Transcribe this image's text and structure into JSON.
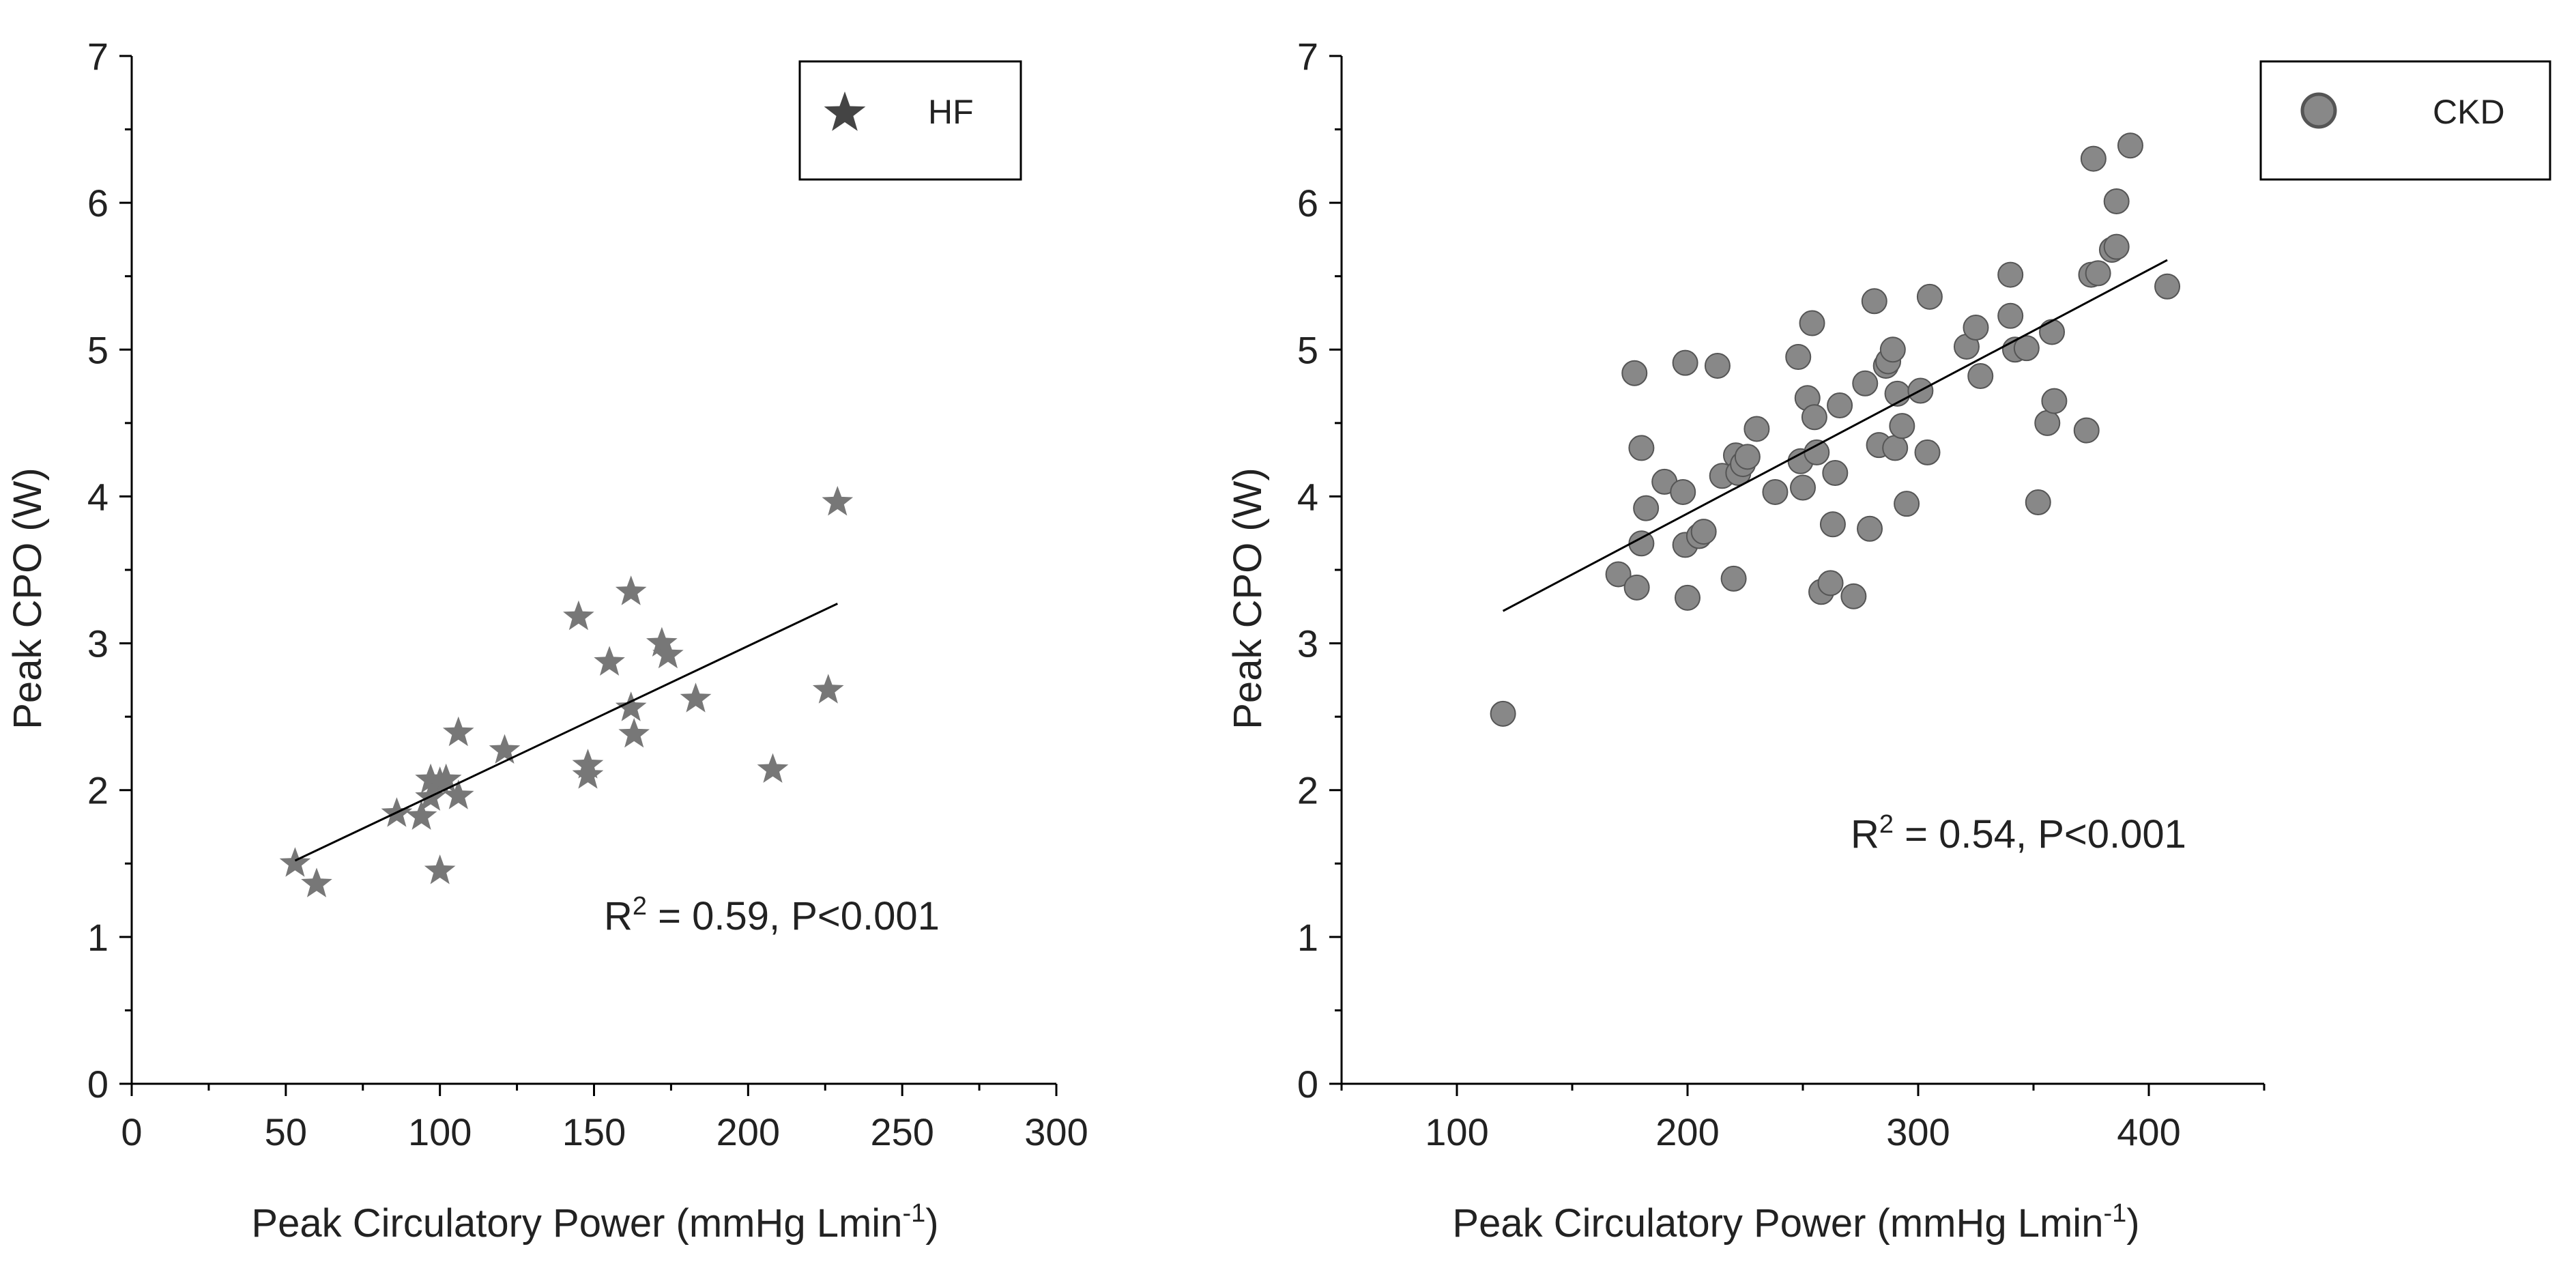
{
  "chart_data": [
    {
      "type": "scatter",
      "marker": "star",
      "legend": "HF",
      "legend_position": "top-right",
      "xlabel": "Peak Circulatory Power (mmHg Lmin",
      "xlabel_sup": "-1",
      "xlabel_end": ")",
      "ylabel": "Peak CPO (W)",
      "xlim": [
        0,
        300
      ],
      "ylim": [
        0,
        7
      ],
      "xticks": [
        "0",
        "50",
        "100",
        "150",
        "200",
        "250",
        "300"
      ],
      "yticks": [
        "0",
        "1",
        "2",
        "3",
        "4",
        "5",
        "6",
        "7"
      ],
      "stat_prefix": "R",
      "stat_sup": "2",
      "stat_suffix": " = 0.59, P<0.001",
      "colors": {
        "marker": "#777777",
        "legend_marker": "#444444",
        "line": "#000000"
      },
      "fit": {
        "x1": 53,
        "y1": 1.52,
        "x2": 229,
        "y2": 3.27
      },
      "points": [
        [
          53,
          1.5
        ],
        [
          60,
          1.36
        ],
        [
          86,
          1.84
        ],
        [
          94,
          1.82
        ],
        [
          97,
          1.95
        ],
        [
          97,
          2.07
        ],
        [
          100,
          2.05
        ],
        [
          102,
          2.07
        ],
        [
          100,
          1.45
        ],
        [
          106,
          1.96
        ],
        [
          106,
          2.39
        ],
        [
          121,
          2.27
        ],
        [
          145,
          3.18
        ],
        [
          148,
          2.17
        ],
        [
          148,
          2.1
        ],
        [
          155,
          2.87
        ],
        [
          162,
          3.35
        ],
        [
          162,
          2.56
        ],
        [
          163,
          2.38
        ],
        [
          172,
          3.0
        ],
        [
          174,
          2.92
        ],
        [
          183,
          2.62
        ],
        [
          208,
          2.14
        ],
        [
          226,
          2.68
        ],
        [
          229,
          3.96
        ]
      ]
    },
    {
      "type": "scatter",
      "marker": "circle",
      "legend": "CKD",
      "legend_position": "top-right",
      "xlabel": "Peak Circulatory Power (mmHg Lmin",
      "xlabel_sup": "-1",
      "xlabel_end": ")",
      "ylabel": "Peak CPO (W)",
      "xlim": [
        50,
        450
      ],
      "ylim": [
        0,
        7
      ],
      "xticks": [
        "100",
        "200",
        "300",
        "400"
      ],
      "xtick_values": [
        100,
        200,
        300,
        400
      ],
      "yticks": [
        "0",
        "1",
        "2",
        "3",
        "4",
        "5",
        "6",
        "7"
      ],
      "stat_prefix": "R",
      "stat_sup": "2",
      "stat_suffix": " = 0.54, P<0.001",
      "colors": {
        "marker": "#888888",
        "marker_edge": "#555555",
        "line": "#000000"
      },
      "fit": {
        "x1": 120,
        "y1": 3.22,
        "x2": 408,
        "y2": 5.61
      },
      "points": [
        [
          120,
          2.52
        ],
        [
          170,
          3.47
        ],
        [
          177,
          4.84
        ],
        [
          178,
          3.38
        ],
        [
          180,
          4.33
        ],
        [
          180,
          3.68
        ],
        [
          182,
          3.92
        ],
        [
          190,
          4.1
        ],
        [
          198,
          4.03
        ],
        [
          199,
          4.91
        ],
        [
          199,
          3.67
        ],
        [
          200,
          3.31
        ],
        [
          205,
          3.73
        ],
        [
          207,
          3.76
        ],
        [
          213,
          4.89
        ],
        [
          215,
          4.14
        ],
        [
          220,
          3.44
        ],
        [
          221,
          4.28
        ],
        [
          222,
          4.16
        ],
        [
          224,
          4.22
        ],
        [
          226,
          4.27
        ],
        [
          230,
          4.46
        ],
        [
          238,
          4.03
        ],
        [
          248,
          4.95
        ],
        [
          249,
          4.24
        ],
        [
          250,
          4.06
        ],
        [
          252,
          4.67
        ],
        [
          254,
          5.18
        ],
        [
          255,
          4.54
        ],
        [
          256,
          4.3
        ],
        [
          258,
          3.35
        ],
        [
          262,
          3.41
        ],
        [
          263,
          3.81
        ],
        [
          264,
          4.16
        ],
        [
          266,
          4.62
        ],
        [
          272,
          3.32
        ],
        [
          277,
          4.77
        ],
        [
          279,
          3.78
        ],
        [
          281,
          5.33
        ],
        [
          283,
          4.35
        ],
        [
          286,
          4.89
        ],
        [
          287,
          4.92
        ],
        [
          289,
          5.0
        ],
        [
          290,
          4.33
        ],
        [
          291,
          4.7
        ],
        [
          293,
          4.48
        ],
        [
          295,
          3.95
        ],
        [
          301,
          4.72
        ],
        [
          304,
          4.3
        ],
        [
          305,
          5.36
        ],
        [
          321,
          5.02
        ],
        [
          325,
          5.15
        ],
        [
          327,
          4.82
        ],
        [
          340,
          5.51
        ],
        [
          340,
          5.23
        ],
        [
          342,
          5.0
        ],
        [
          347,
          5.01
        ],
        [
          352,
          3.96
        ],
        [
          356,
          4.5
        ],
        [
          358,
          5.12
        ],
        [
          359,
          4.65
        ],
        [
          373,
          4.45
        ],
        [
          375,
          5.51
        ],
        [
          376,
          6.3
        ],
        [
          378,
          5.52
        ],
        [
          384,
          5.68
        ],
        [
          386,
          6.01
        ],
        [
          386,
          5.7
        ],
        [
          392,
          6.39
        ],
        [
          408,
          5.43
        ]
      ]
    }
  ]
}
